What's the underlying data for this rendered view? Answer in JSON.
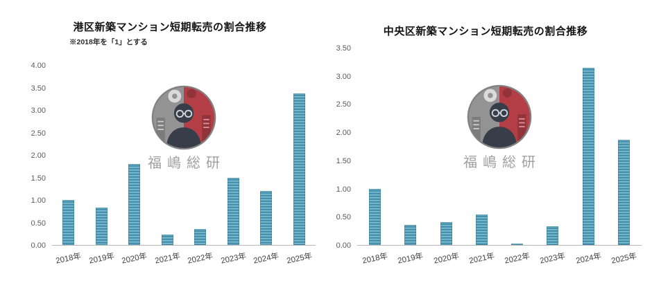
{
  "watermark": {
    "text": "福嶋総研"
  },
  "colors": {
    "bar_dark": "#4591ad",
    "bar_light": "#84c0d4",
    "axis_line": "#b7b7b7",
    "tick_text": "#595959",
    "title_text": "#141414",
    "watermark_gray": "#8e8e8e",
    "watermark_red": "#b0343c"
  },
  "chart_data": [
    {
      "type": "bar",
      "title": "港区新築マンション短期転売の割合推移",
      "subtitle": "※2018年を「1」とする",
      "categories": [
        "2018年",
        "2019年",
        "2020年",
        "2021年",
        "2022年",
        "2023年",
        "2024年",
        "2025年"
      ],
      "values": [
        1.0,
        0.84,
        1.8,
        0.23,
        0.35,
        1.5,
        1.2,
        3.38
      ],
      "xlabel": "",
      "ylabel": "",
      "ylim": [
        0,
        4.0
      ],
      "ytick_step": 0.5,
      "yticks": [
        "0.00",
        "0.50",
        "1.00",
        "1.50",
        "2.00",
        "2.50",
        "3.00",
        "3.50",
        "4.00"
      ],
      "grid": false,
      "legend": "none"
    },
    {
      "type": "bar",
      "title": "中央区新築マンション短期転売の割合推移",
      "subtitle": "",
      "categories": [
        "2018年",
        "2019年",
        "2020年",
        "2021年",
        "2022年",
        "2023年",
        "2024年",
        "2025年"
      ],
      "values": [
        1.0,
        0.36,
        0.41,
        0.54,
        0.02,
        0.33,
        3.15,
        1.87
      ],
      "xlabel": "",
      "ylabel": "",
      "ylim": [
        0,
        3.5
      ],
      "ytick_step": 0.5,
      "yticks": [
        "0.00",
        "0.50",
        "1.00",
        "1.50",
        "2.00",
        "2.50",
        "3.00",
        "3.50"
      ],
      "grid": false,
      "legend": "none"
    }
  ]
}
